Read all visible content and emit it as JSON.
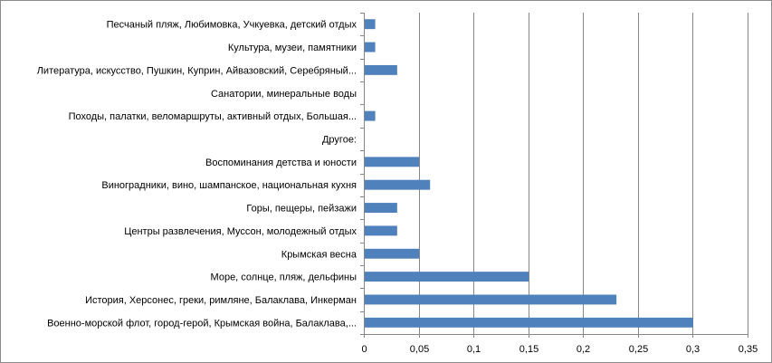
{
  "chart_data": {
    "type": "bar",
    "orientation": "horizontal",
    "categories": [
      "Песчаный пляж, Любимовка, Учкуевка, детский отдых",
      "Культура, музеи, памятники",
      "Литература, искусство, Пушкин, Куприн, Айвазовский, Серебряный...",
      "Санатории, минеральные воды",
      "Походы, палатки, веломаршруты, активный отдых, Большая...",
      "Другое:",
      "Воспоминания детства и юности",
      "Виноградники, вино, шампанское, национальная кухня",
      "Горы, пещеры, пейзажи",
      "Центры развлечения, Муссон, молодежный отдых",
      "Крымская весна",
      "Море, солнце, пляж, дельфины",
      "История, Херсонес, греки, римляне, Балаклава, Инкерман",
      "Военно-морской флот, город-герой, Крымская война, Балаклава,..."
    ],
    "values": [
      0.01,
      0.01,
      0.03,
      0,
      0.01,
      0,
      0.05,
      0.06,
      0.03,
      0.03,
      0.05,
      0.15,
      0.23,
      0.3
    ],
    "xlim": [
      0,
      0.35
    ],
    "x_ticks": [
      0,
      0.05,
      0.1,
      0.15,
      0.2,
      0.25,
      0.3,
      0.35
    ],
    "x_tick_labels": [
      "0",
      "0,05",
      "0,1",
      "0,15",
      "0,2",
      "0,25",
      "0,3",
      "0,35"
    ],
    "grid": "vertical",
    "legend": "none",
    "title": "",
    "xlabel": "",
    "ylabel": "",
    "bar_color": "#4f81bd",
    "grid_color": "#868686"
  }
}
